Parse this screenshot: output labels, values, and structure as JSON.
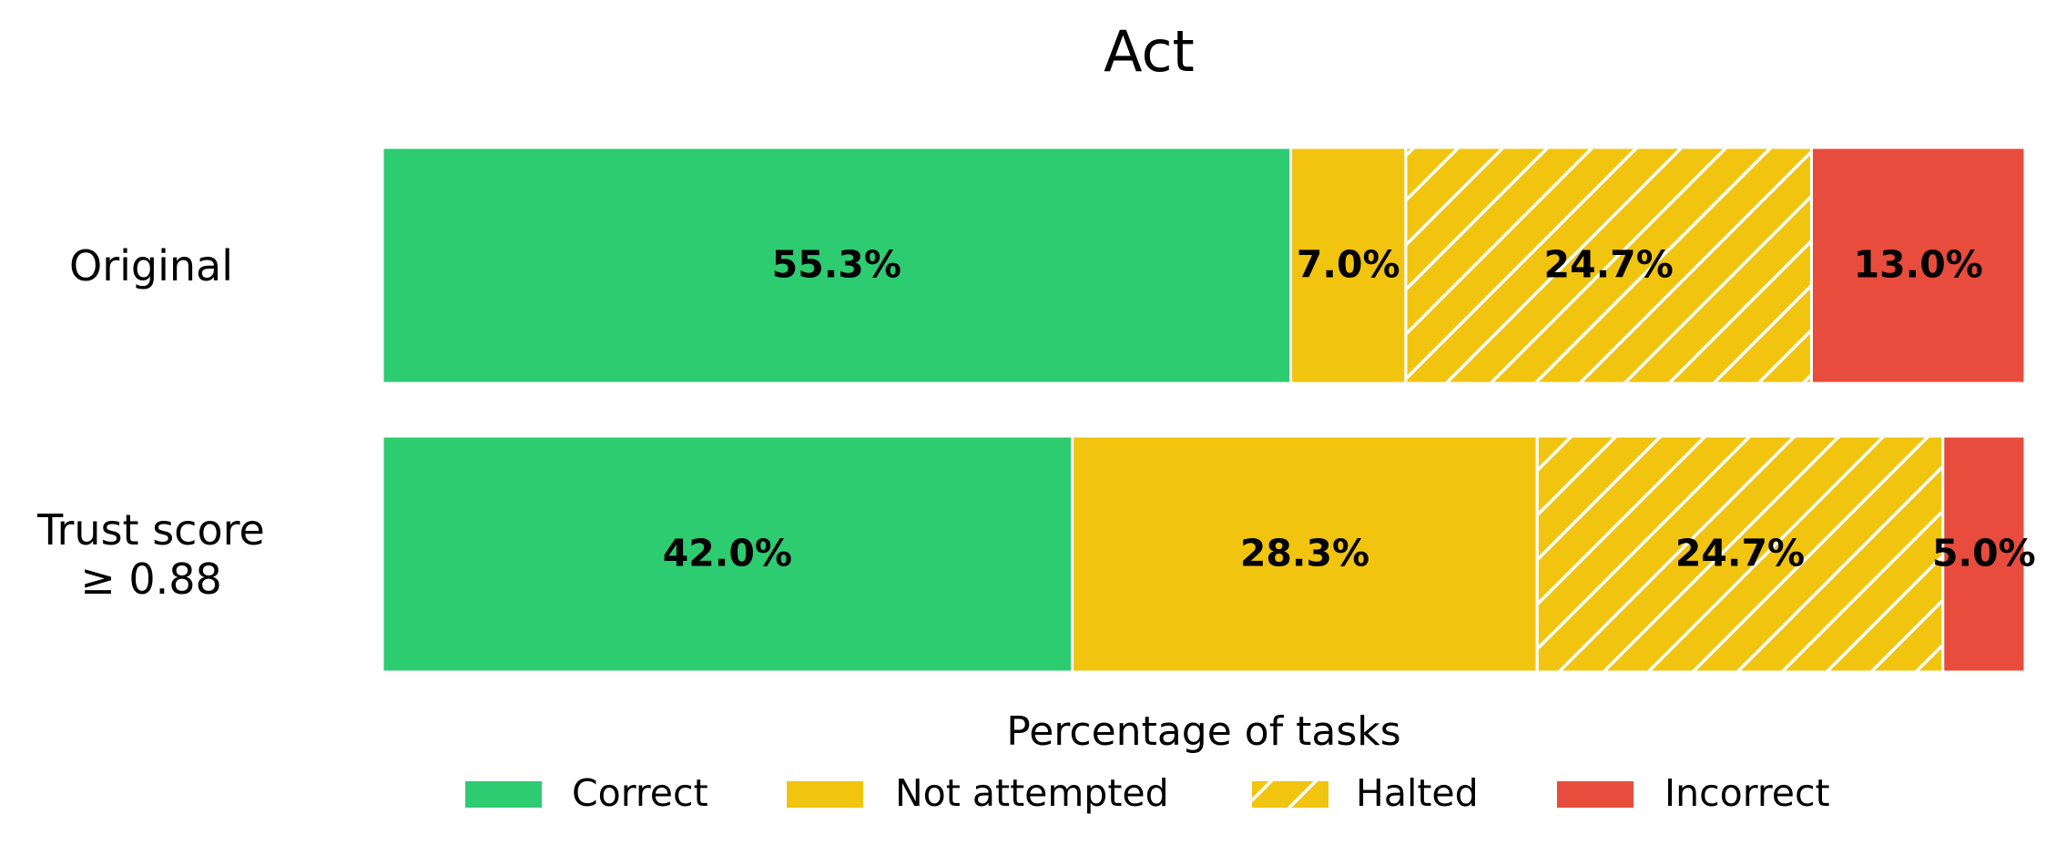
{
  "chart_data": {
    "type": "stacked-barh",
    "title": "Act",
    "categories": [
      "Original",
      "Trust score\n≥ 0.88"
    ],
    "series": [
      {
        "name": "Correct",
        "color": "#2ecc71",
        "values": [
          55.3,
          42.0
        ],
        "value_labels": [
          "55.3%",
          "42.0%"
        ]
      },
      {
        "name": "Not attempted",
        "color": "#f1c40f",
        "values": [
          7.0,
          28.3
        ],
        "value_labels": [
          "7.0%",
          "28.3%"
        ]
      },
      {
        "name": "Halted",
        "color": "#f1c40f",
        "hatch": "/",
        "values": [
          24.7,
          24.7
        ],
        "value_labels": [
          "24.7%",
          "24.7%"
        ]
      },
      {
        "name": "Incorrect",
        "color": "#e74c3c",
        "values": [
          13.0,
          5.0
        ],
        "value_labels": [
          "13.0%",
          "5.0%"
        ]
      }
    ],
    "xlabel": "Percentage of tasks",
    "xlim": [
      0,
      100
    ],
    "legend": "bottom"
  }
}
